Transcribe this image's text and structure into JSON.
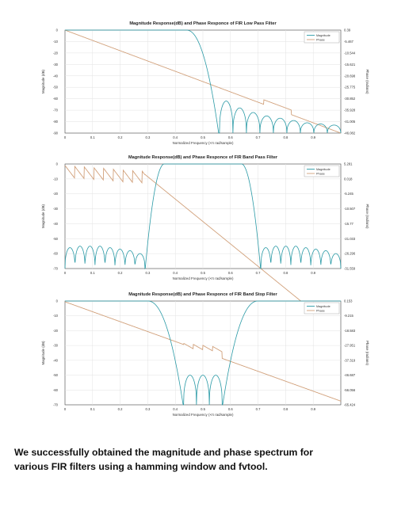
{
  "caption": {
    "line1": "We successfully obtained the magnitude and phase spectrum for",
    "line2": "various FIR filters using a hamming window and fvtool."
  },
  "colors": {
    "magnitude": "#2a9aa6",
    "phase": "#d1a07a",
    "grid": "#e2e2e2",
    "axis": "#444444"
  },
  "chart_data": [
    {
      "type": "line",
      "title": "Magnitude Response(dB) and Phase Responce of FIR Low Pass Filter",
      "xlabel": "Normalized Frequency (×π rad/sample)",
      "ylabel": "Magnitude (dB)",
      "ylabel_right": "Phase (radians)",
      "xlim": [
        0,
        1
      ],
      "ylim": [
        -90,
        0
      ],
      "xticks": [
        "0",
        "0.1",
        "0.2",
        "0.3",
        "0.4",
        "0.5",
        "0.6",
        "0.7",
        "0.8",
        "0.9"
      ],
      "yticks": [
        "0",
        "-10",
        "-20",
        "-30",
        "-40",
        "-50",
        "-60",
        "-70",
        "-80",
        "-90"
      ],
      "yticks_right": [
        "0.39",
        "-5.467",
        "-10.544",
        "-15.621",
        "-20.698",
        "-25.775",
        "-30.852",
        "-35.928",
        "-41.005",
        "-46.082"
      ],
      "legend": [
        "Magnitude",
        "Phase"
      ],
      "legend_position": "top-right",
      "grid": true,
      "filter": "lowpass",
      "passband": [
        0,
        0.44
      ],
      "cutoff": 0.5,
      "phase_start_dB": 0,
      "phase_end_dB": -90,
      "stopband_lobe_peaks_dB": [
        -62,
        -68,
        -72,
        -75,
        -77,
        -79,
        -81,
        -82,
        -83
      ],
      "phase_jumps": [
        0.72,
        0.82,
        0.92
      ]
    },
    {
      "type": "line",
      "title": "Magnitude Response(dB) and Phase Responce of FIR Band Pass Filter",
      "xlabel": "Normalized Frequency (×π rad/sample)",
      "ylabel": "Magnitude (dB)",
      "ylabel_right": "Phase (radians)",
      "xlim": [
        0,
        1
      ],
      "ylim": [
        -70,
        0
      ],
      "xticks": [
        "0",
        "0.1",
        "0.2",
        "0.3",
        "0.4",
        "0.5",
        "0.6",
        "0.7",
        "0.8",
        "0.9"
      ],
      "yticks": [
        "0",
        "-10",
        "-20",
        "-30",
        "-40",
        "-50",
        "-60",
        "-70"
      ],
      "yticks_right": [
        "5.281",
        "0.018",
        "-5.245",
        "-10.507",
        "-15.77",
        "-21.033",
        "-26.296",
        "-31.559"
      ],
      "legend": [
        "Magnitude",
        "Phase"
      ],
      "legend_position": "top-right",
      "grid": true,
      "filter": "bandpass",
      "passband": [
        0.3,
        0.7
      ],
      "stopband_lobe_peaks_dB": [
        -56,
        -55,
        -55,
        -55,
        -56,
        -57,
        -58,
        -60
      ],
      "phase_sawtooth_range": [
        0,
        0.29
      ]
    },
    {
      "type": "line",
      "title": "Magnitude Response(dB) and Phase Responce of FIR Band Stop Filter",
      "xlabel": "Normalized Frequency (×π rad/sample)",
      "ylabel": "Magnitude (dB)",
      "ylabel_right": "Phase (radians)",
      "xlim": [
        0,
        1
      ],
      "ylim": [
        -70,
        0
      ],
      "xticks": [
        "0",
        "0.1",
        "0.2",
        "0.3",
        "0.4",
        "0.5",
        "0.6",
        "0.7",
        "0.8",
        "0.9"
      ],
      "yticks": [
        "0",
        "-10",
        "-20",
        "-30",
        "-40",
        "-50",
        "-60",
        "-70"
      ],
      "yticks_right": [
        "0.153",
        "-9.215",
        "-18.583",
        "-27.951",
        "-37.319",
        "-46.687",
        "-56.056",
        "-65.424"
      ],
      "legend": [
        "Magnitude",
        "Phase"
      ],
      "legend_position": "top-right",
      "grid": true,
      "filter": "bandstop",
      "stopband": [
        0.43,
        0.57
      ],
      "transition_edges": [
        0.3,
        0.7
      ],
      "stopband_lobe_peaks_dB": [
        -50,
        -50,
        -50
      ],
      "phase_sawtooth_range": [
        0.43,
        0.57
      ]
    }
  ]
}
